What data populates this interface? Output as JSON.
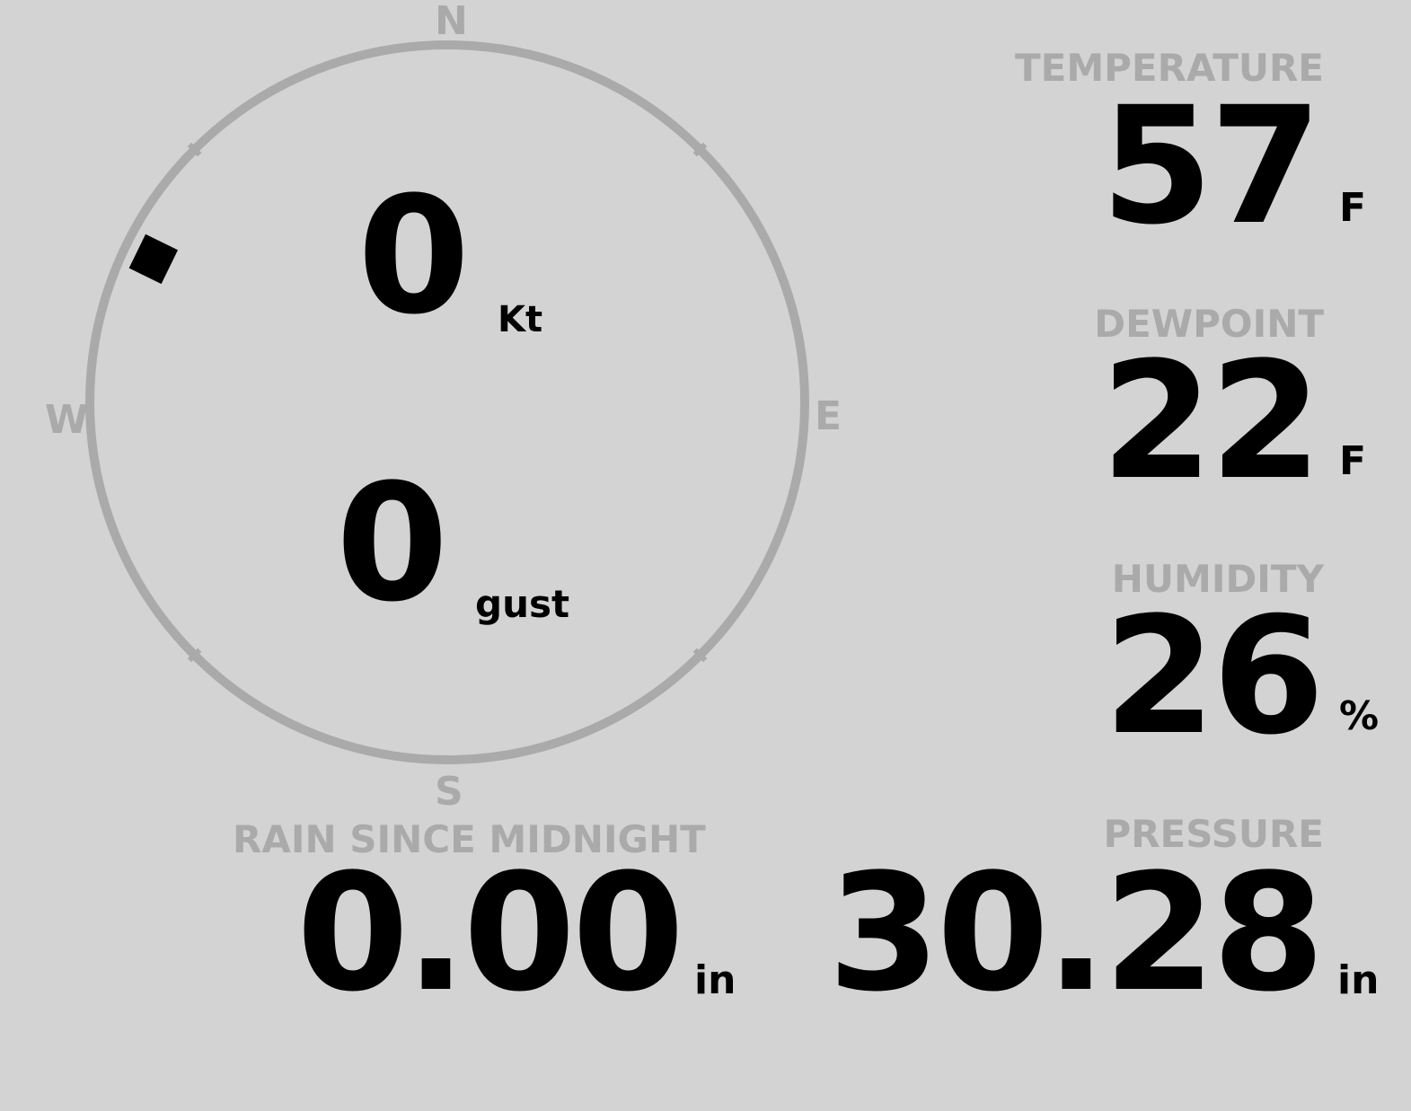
{
  "wind": {
    "compass": {
      "north": "N",
      "east": "E",
      "south": "S",
      "west": "W"
    },
    "direction_deg": 296,
    "speed": "0",
    "speed_unit": "Kt",
    "gust": "0",
    "gust_unit": "gust"
  },
  "temperature": {
    "label": "TEMPERATURE",
    "value": "57",
    "unit": "F"
  },
  "dewpoint": {
    "label": "DEWPOINT",
    "value": "22",
    "unit": "F"
  },
  "humidity": {
    "label": "HUMIDITY",
    "value": "26",
    "unit": "%"
  },
  "pressure": {
    "label": "PRESSURE",
    "value": "30.28",
    "unit": "in"
  },
  "rain": {
    "label": "RAIN SINCE MIDNIGHT",
    "value": "0.00",
    "unit": "in"
  },
  "colors": {
    "background": "#d3d3d3",
    "label": "#aaaaaa",
    "value": "#000000",
    "marker": "#000000"
  }
}
